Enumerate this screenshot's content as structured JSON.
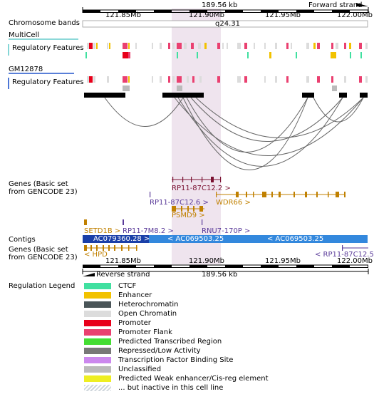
{
  "header": {
    "span_label": "189.56 kb",
    "forward_strand": "Forward strand",
    "reverse_strand": "Reverse strand",
    "positions": [
      "121.85Mb",
      "121.90Mb",
      "121.95Mb",
      "122.00Mb"
    ]
  },
  "tracks": {
    "chromosome_bands": "Chromosome bands",
    "band_name": "q24.31",
    "multicell": "MultiCell",
    "regulatory_features": "Regulatory Features",
    "gm12878": "GM12878",
    "genes_basic": "Genes (Basic set\nfrom GENCODE 23)",
    "contigs": "Contigs",
    "genes_basic_lower": "Genes (Basic set\nfrom GENCODE 23)",
    "regulation_legend": "Regulation Legend"
  },
  "genes": {
    "rp11_87c12_2": "RP11-87C12.2 >",
    "rp11_87c12_6": "RP11-87C12.6 >",
    "wdr66": "WDR66 >",
    "psmd9": "PSMD9 >",
    "setd1b": "SETD1B >",
    "rp11_7m8_2": "RP11-7M8.2 >",
    "rnu7_170p": "RNU7-170P >",
    "hpd": "< HPD",
    "rp11_87c12_5": "< RP11-87C12.5"
  },
  "contigs": {
    "ac079360": "AC079360.28 >",
    "ac069503_a": "< AC069503.25",
    "ac069503_b": "< AC069503.25"
  },
  "legend": [
    {
      "label": "CTCF",
      "color": "#40e0a0"
    },
    {
      "label": "Enhancer",
      "color": "#f2c200"
    },
    {
      "label": "Heterochromatin",
      "color": "#4a5558"
    },
    {
      "label": "Open Chromatin",
      "color": "#dcdcdc"
    },
    {
      "label": "Promoter",
      "color": "#e8001a"
    },
    {
      "label": "Promoter Flank",
      "color": "#ea4070"
    },
    {
      "label": "Predicted Transcribed Region",
      "color": "#44dd33"
    },
    {
      "label": "Repressed/Low Activity",
      "color": "#787878"
    },
    {
      "label": "Transcription Factor Binding Site",
      "color": "#cc88ee"
    },
    {
      "label": "Unclassified",
      "color": "#bbbbbb"
    },
    {
      "label": "Predicted Weak enhancer/Cis-reg element",
      "color": "#eeee22"
    },
    {
      "label": "... but inactive in this cell line",
      "color": "hatched"
    }
  ],
  "colors": {
    "highlight": "#efe4ee",
    "gene_dark": "#7a1030",
    "gene_gold": "#c08000",
    "gene_purple": "#5a3a99",
    "contig_blue": "#3388dd",
    "contig_dark": "#1a3fa8",
    "loop": "#666666",
    "accent_cyan": "#66cccc",
    "accent_blue": "#2255cc"
  }
}
